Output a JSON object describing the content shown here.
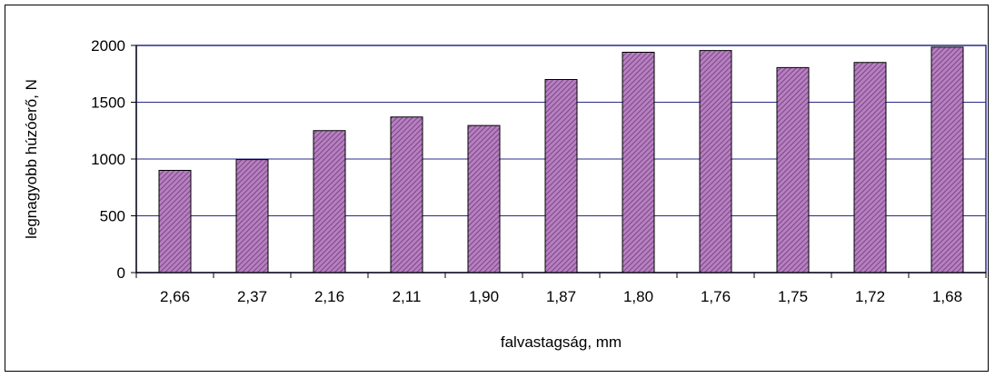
{
  "chart_data": {
    "type": "bar",
    "title": "",
    "xlabel": "falvastagság, mm",
    "ylabel": "legnagyobb húzóerő, N",
    "categories": [
      "2,66",
      "2,37",
      "2,16",
      "2,11",
      "1,90",
      "1,87",
      "1,80",
      "1,76",
      "1,75",
      "1,72",
      "1,68"
    ],
    "values": [
      900,
      995,
      1250,
      1370,
      1295,
      1700,
      1940,
      1955,
      1805,
      1850,
      1985
    ],
    "ylim": [
      0,
      2000
    ],
    "yticks": [
      "0",
      "500",
      "1000",
      "1500",
      "2000"
    ],
    "ytick_values": [
      0,
      500,
      1000,
      1500,
      2000
    ],
    "grid": true,
    "legend": "none",
    "colors": {
      "bar_fill": "#b77fc0",
      "bar_hatch": "#6a3a78",
      "bar_edge": "#000000",
      "plot_border": "#2b2b8a",
      "gridline": "#2b2b8a",
      "axis": "#000000"
    }
  }
}
